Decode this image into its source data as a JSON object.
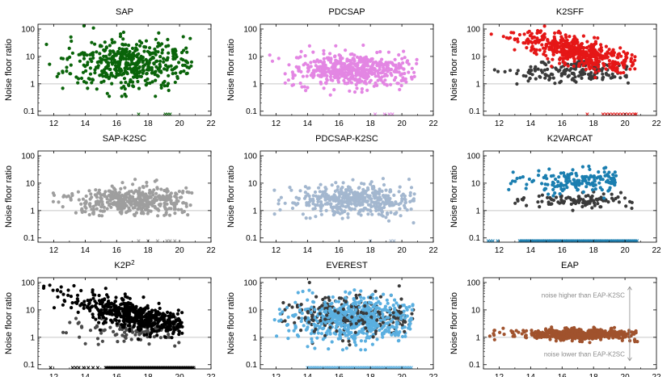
{
  "chart_data": {
    "type": "scatter",
    "ylabel": "Noise floor ratio",
    "xlim": [
      11,
      22
    ],
    "ylim": [
      0.07,
      150
    ],
    "yscale": "log",
    "xticks": [
      "12",
      "14",
      "16",
      "18",
      "20",
      "22"
    ],
    "yticks": [
      "0.1",
      "1",
      "10",
      "100"
    ],
    "reference_line": 1,
    "panels": [
      {
        "title": "SAP",
        "color": "#0a640a",
        "secondary": null,
        "outliers_main": true,
        "main": {
          "n": 480,
          "center": 6,
          "spread": 1.0,
          "xmin": 11.3,
          "xmax": 20.8,
          "xcenter": 17.0
        },
        "crosses": [
          17.4,
          19.1,
          19.25,
          19.4
        ]
      },
      {
        "title": "PDCSAP",
        "color": "#e386e3",
        "secondary": null,
        "main": {
          "n": 520,
          "center": 3.2,
          "spread": 0.65,
          "xmin": 11.5,
          "xmax": 21.0,
          "xcenter": 17.0
        },
        "crosses": [
          18.3,
          18.9,
          19.2,
          19.4
        ]
      },
      {
        "title": "K2SFF",
        "color": "#e51717",
        "secondary": "#3a3a3a",
        "main": {
          "n": 520,
          "center": 20,
          "spread": 0.55,
          "xmin": 11.4,
          "xmax": 20.7,
          "xcenter": 17.0,
          "trend": true
        },
        "second": {
          "n": 170,
          "center": 3,
          "spread": 0.45,
          "xmin": 11.5,
          "xmax": 20.6,
          "xcenter": 17.0
        },
        "crosses": [
          17.6,
          18.6,
          18.8,
          19.0,
          19.2,
          19.4,
          19.6,
          19.8,
          20.0,
          20.2,
          20.4,
          20.6,
          20.7
        ]
      },
      {
        "title": "SAP-K2SC",
        "color": "#9e9e9e",
        "secondary": null,
        "main": {
          "n": 420,
          "center": 2.3,
          "spread": 0.6,
          "xmin": 11.4,
          "xmax": 20.8,
          "xcenter": 17.0
        },
        "crosses": [
          17.4,
          18.0,
          18.6,
          19.2,
          19.4,
          19.7
        ]
      },
      {
        "title": "PDCSAP-K2SC",
        "color": "#a3b7cf",
        "secondary": null,
        "main": {
          "n": 440,
          "center": 2.4,
          "spread": 0.65,
          "xmin": 11.4,
          "xmax": 20.8,
          "xcenter": 17.0
        },
        "crosses": [
          18.0,
          19.3,
          19.5
        ]
      },
      {
        "title": "K2VARCAT",
        "color": "#1a7eb0",
        "secondary": "#3a3a3a",
        "main": {
          "n": 170,
          "center": 12,
          "spread": 0.45,
          "xmin": 12.6,
          "xmax": 19.5,
          "xcenter": 17.0
        },
        "second": {
          "n": 110,
          "center": 2.4,
          "spread": 0.3,
          "xmin": 12.6,
          "xmax": 20.5,
          "xcenter": 17.0
        },
        "crosses_dense": {
          "from": 13.3,
          "to": 20.8,
          "step": 0.09
        },
        "crosses": [
          11.3,
          11.45,
          11.6,
          11.9
        ]
      },
      {
        "title": "K2P",
        "title_sup": "2",
        "color": "#000000",
        "secondary": "#4a4a4a",
        "main": {
          "n": 520,
          "center": 9,
          "spread": 0.55,
          "xmin": 11.3,
          "xmax": 20.2,
          "xcenter": 17.0,
          "trend": true
        },
        "second": {
          "n": 120,
          "center": 2,
          "spread": 0.55,
          "xmin": 12.5,
          "xmax": 20.0,
          "xcenter": 17.0
        },
        "crosses_dense": {
          "from": 15.3,
          "to": 20.9,
          "step": 0.08
        },
        "crosses": [
          11.8,
          13.2,
          13.4,
          13.6,
          13.9,
          14.2,
          14.5,
          14.8
        ]
      },
      {
        "title": "EVEREST",
        "color": "#5aafe0",
        "secondary": "#3a3a3a",
        "main": {
          "n": 560,
          "center": 4.5,
          "spread": 0.9,
          "xmin": 11.4,
          "xmax": 20.8,
          "xcenter": 17.0
        },
        "second": {
          "n": 220,
          "center": 6,
          "spread": 0.8,
          "xmin": 12.0,
          "xmax": 20.8,
          "xcenter": 17.0
        },
        "crosses_dense": {
          "from": 14.0,
          "to": 20.6,
          "step": 0.11
        },
        "crosses": []
      },
      {
        "title": "EAP",
        "color": "#a0522d",
        "secondary": null,
        "main": {
          "n": 520,
          "center": 1.3,
          "spread": 0.22,
          "xmin": 11.4,
          "xmax": 20.8,
          "xcenter": 17.0
        },
        "crosses": [],
        "annotations": {
          "upper": "noise higher than EAP-K2SC",
          "lower": "noise lower than EAP-K2SC"
        }
      }
    ]
  }
}
